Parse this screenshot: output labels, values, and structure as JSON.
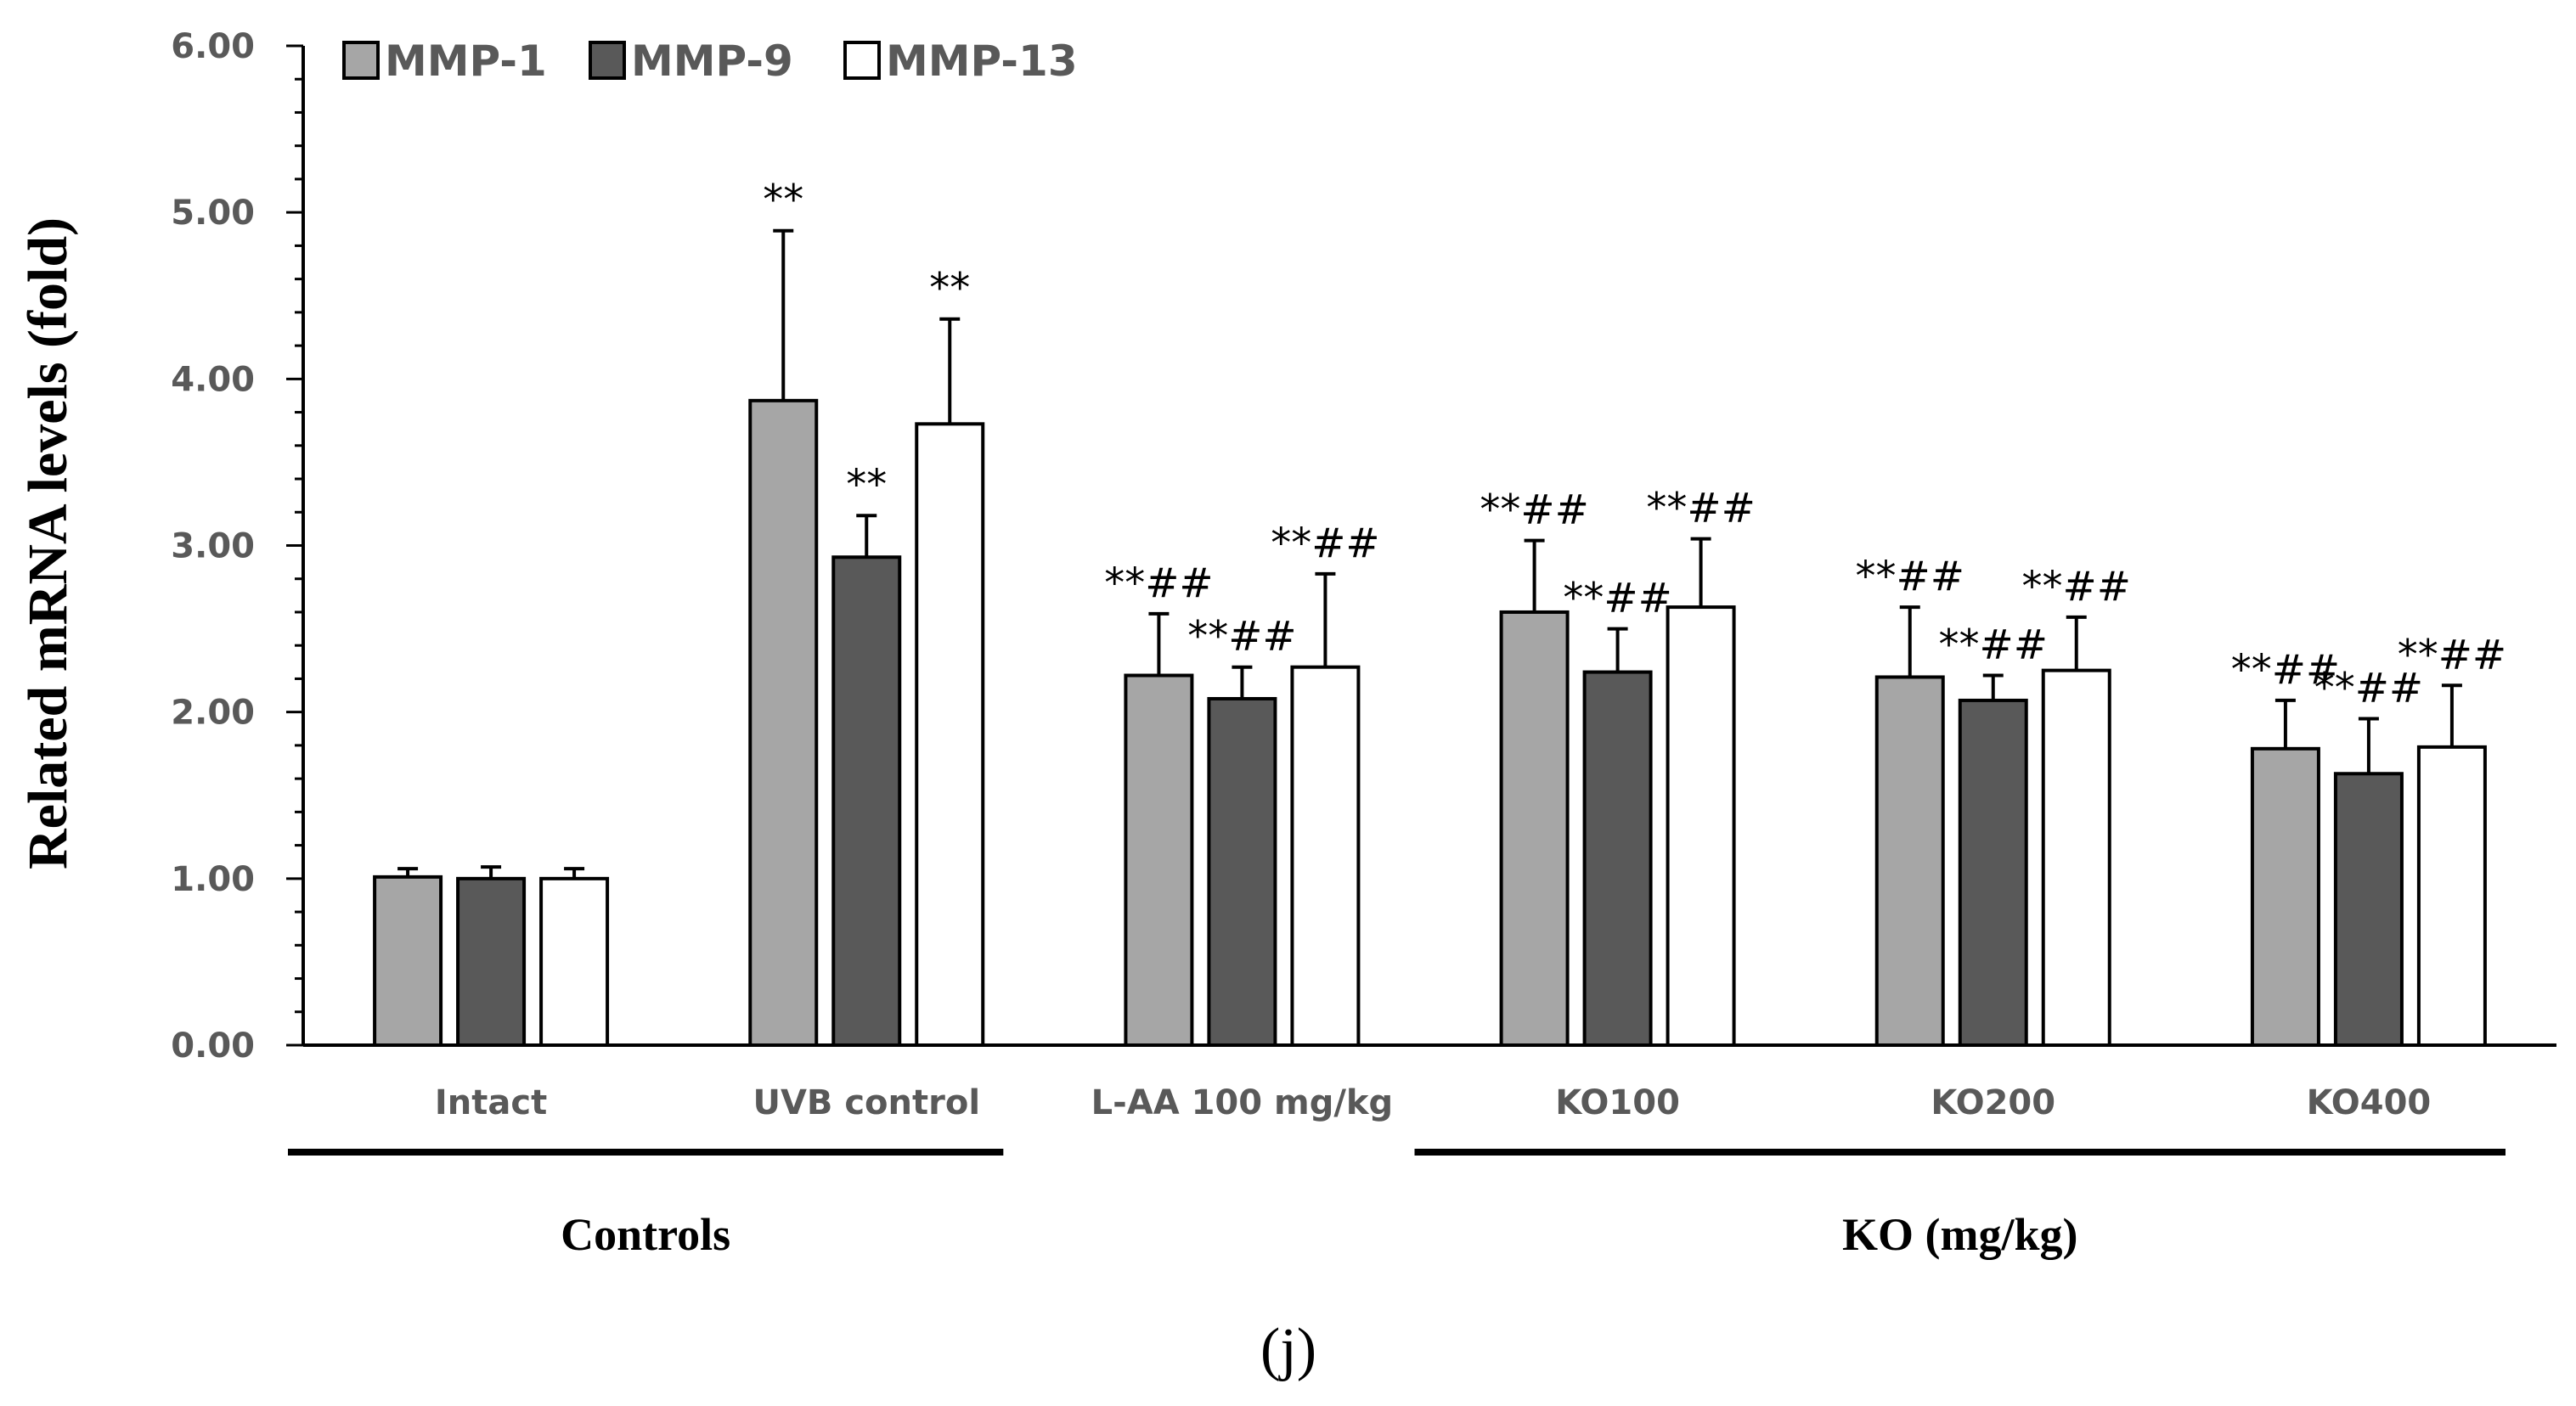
{
  "chart_data": {
    "type": "bar",
    "ylabel": "Related mRNA levels (fold)",
    "ylim": [
      0,
      6
    ],
    "yticks": [
      "0.00",
      "1.00",
      "2.00",
      "3.00",
      "4.00",
      "5.00",
      "6.00"
    ],
    "categories": [
      "Intact",
      "UVB control",
      "L-AA 100 mg/kg",
      "KO100",
      "KO200",
      "KO400"
    ],
    "series": [
      {
        "name": "MMP-1",
        "color": "#a6a6a6",
        "values": [
          1.01,
          3.87,
          2.22,
          2.6,
          2.21,
          1.78
        ],
        "errors": [
          0.05,
          1.02,
          0.37,
          0.43,
          0.42,
          0.29
        ],
        "annotations": [
          "",
          "**",
          "**##",
          "**##",
          "**##",
          "**##"
        ]
      },
      {
        "name": "MMP-9",
        "color": "#595959",
        "values": [
          1.0,
          2.93,
          2.08,
          2.24,
          2.07,
          1.63
        ],
        "errors": [
          0.07,
          0.25,
          0.19,
          0.26,
          0.15,
          0.33
        ],
        "annotations": [
          "",
          "**",
          "**##",
          "**##",
          "**##",
          "**##"
        ]
      },
      {
        "name": "MMP-13",
        "color": "#ffffff",
        "values": [
          1.0,
          3.73,
          2.27,
          2.63,
          2.25,
          1.79
        ],
        "errors": [
          0.06,
          0.63,
          0.56,
          0.41,
          0.32,
          0.37
        ],
        "annotations": [
          "",
          "**",
          "**##",
          "**##",
          "**##",
          "**##"
        ]
      }
    ],
    "groups": [
      {
        "label": "Controls",
        "categories": [
          "Intact",
          "UVB control"
        ]
      },
      {
        "label": "KO (mg/kg)",
        "categories": [
          "KO100",
          "KO200",
          "KO400"
        ]
      }
    ],
    "legend_position": "top-left",
    "grid": false,
    "panel_label": "(j)"
  }
}
